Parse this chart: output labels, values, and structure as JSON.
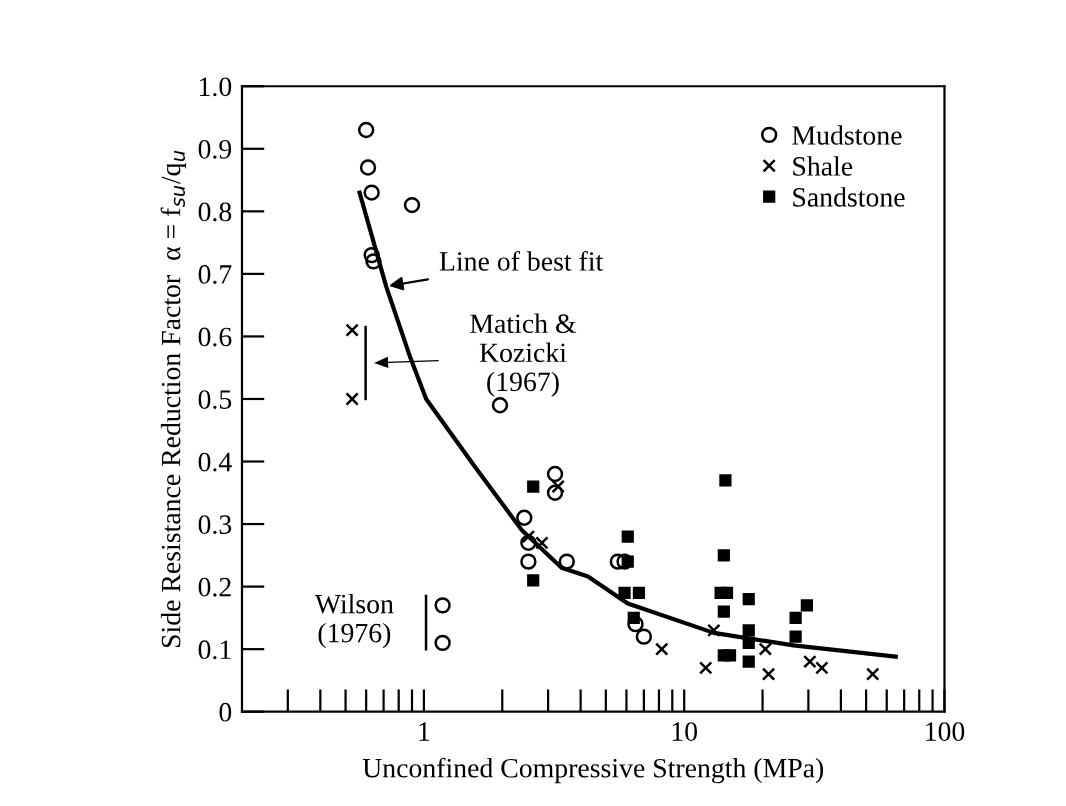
{
  "chart_data": {
    "type": "scatter",
    "xlabel": "Unconfined Compressive Strength (MPa)",
    "ylabel": "Side Resistance Reduction Factor  α = f$_{su}$/q$_{u}$",
    "log": "x",
    "xlim": [
      0.2,
      100
    ],
    "ylim": [
      0,
      1.0
    ],
    "xticks": [
      {
        "value": 0.3,
        "label": null
      },
      {
        "value": 0.4,
        "label": null
      },
      {
        "value": 0.5,
        "label": null
      },
      {
        "value": 0.6,
        "label": null
      },
      {
        "value": 0.7,
        "label": null
      },
      {
        "value": 0.8,
        "label": null
      },
      {
        "value": 0.9,
        "label": null
      },
      1,
      {
        "value": 2,
        "label": null
      },
      {
        "value": 3,
        "label": null
      },
      {
        "value": 4,
        "label": null
      },
      {
        "value": 5,
        "label": null
      },
      {
        "value": 6,
        "label": null
      },
      {
        "value": 7,
        "label": null
      },
      {
        "value": 8,
        "label": null
      },
      {
        "value": 9,
        "label": null
      },
      10,
      {
        "value": 20,
        "label": null
      },
      {
        "value": 30,
        "label": null
      },
      {
        "value": 40,
        "label": null
      },
      {
        "value": 50,
        "label": null
      },
      {
        "value": 60,
        "label": null
      },
      {
        "value": 70,
        "label": null
      },
      {
        "value": 80,
        "label": null
      },
      {
        "value": 90,
        "label": null
      },
      100
    ],
    "yticks": [
      0,
      0.1,
      0.2,
      0.3,
      0.4,
      0.5,
      0.6,
      0.7,
      0.8,
      0.9,
      {
        "value": 1.0,
        "label": "1.0"
      }
    ],
    "grid": false,
    "legend": "top right",
    "series": [
      {
        "name": "Mudstone",
        "color": "#000000",
        "marker": "circle",
        "x": [
          0.6,
          0.61,
          0.63,
          0.9,
          0.63,
          0.64,
          1.96,
          1.18,
          1.18,
          2.43,
          2.52,
          2.52,
          3.19,
          3.19,
          3.54,
          5.56,
          5.9,
          7.0,
          6.5
        ],
        "values": [
          0.93,
          0.87,
          0.83,
          0.81,
          0.73,
          0.72,
          0.49,
          0.17,
          0.11,
          0.31,
          0.27,
          0.24,
          0.38,
          0.35,
          0.24,
          0.24,
          0.24,
          0.12,
          0.14
        ]
      },
      {
        "name": "Shale",
        "color": "#000000",
        "marker": "cross",
        "x": [
          0.53,
          0.53,
          2.52,
          2.84,
          3.28,
          8.2,
          12.1,
          13.0,
          21.1,
          20.5,
          30.4,
          33.8,
          53
        ],
        "values": [
          0.61,
          0.5,
          0.28,
          0.27,
          0.36,
          0.1,
          0.07,
          0.13,
          0.06,
          0.1,
          0.08,
          0.07,
          0.06
        ]
      },
      {
        "name": "Sandstone",
        "color": "#000000",
        "marker": "square",
        "x": [
          2.63,
          2.63,
          6.07,
          6.07,
          5.9,
          6.7,
          6.4,
          14.4,
          14.2,
          13.8,
          14.6,
          14.2,
          17.7,
          17.7,
          17.7,
          17.7,
          14.2,
          15.0,
          26.8,
          29.6,
          26.8
        ],
        "values": [
          0.36,
          0.21,
          0.28,
          0.24,
          0.19,
          0.19,
          0.15,
          0.37,
          0.25,
          0.19,
          0.19,
          0.16,
          0.18,
          0.13,
          0.11,
          0.08,
          0.09,
          0.09,
          0.15,
          0.17,
          0.12
        ]
      },
      {
        "type": "line",
        "color": "#000000",
        "line_style": "solid",
        "x": [
          0.566,
          0.716,
          0.88,
          1.02,
          1.58,
          2.38,
          3.38,
          4.27,
          6.07,
          13.0,
          26.3,
          65
        ],
        "values": [
          0.83,
          0.68,
          0.57,
          0.5,
          0.39,
          0.29,
          0.23,
          0.216,
          0.173,
          0.126,
          0.106,
          0.088
        ]
      }
    ],
    "annotations": [
      {
        "text": "Line of best fit",
        "x": 0.716,
        "y": 0.68
      },
      "Matich &\nKozicki\n(1967)",
      "Wilson\n(1976)"
    ]
  }
}
